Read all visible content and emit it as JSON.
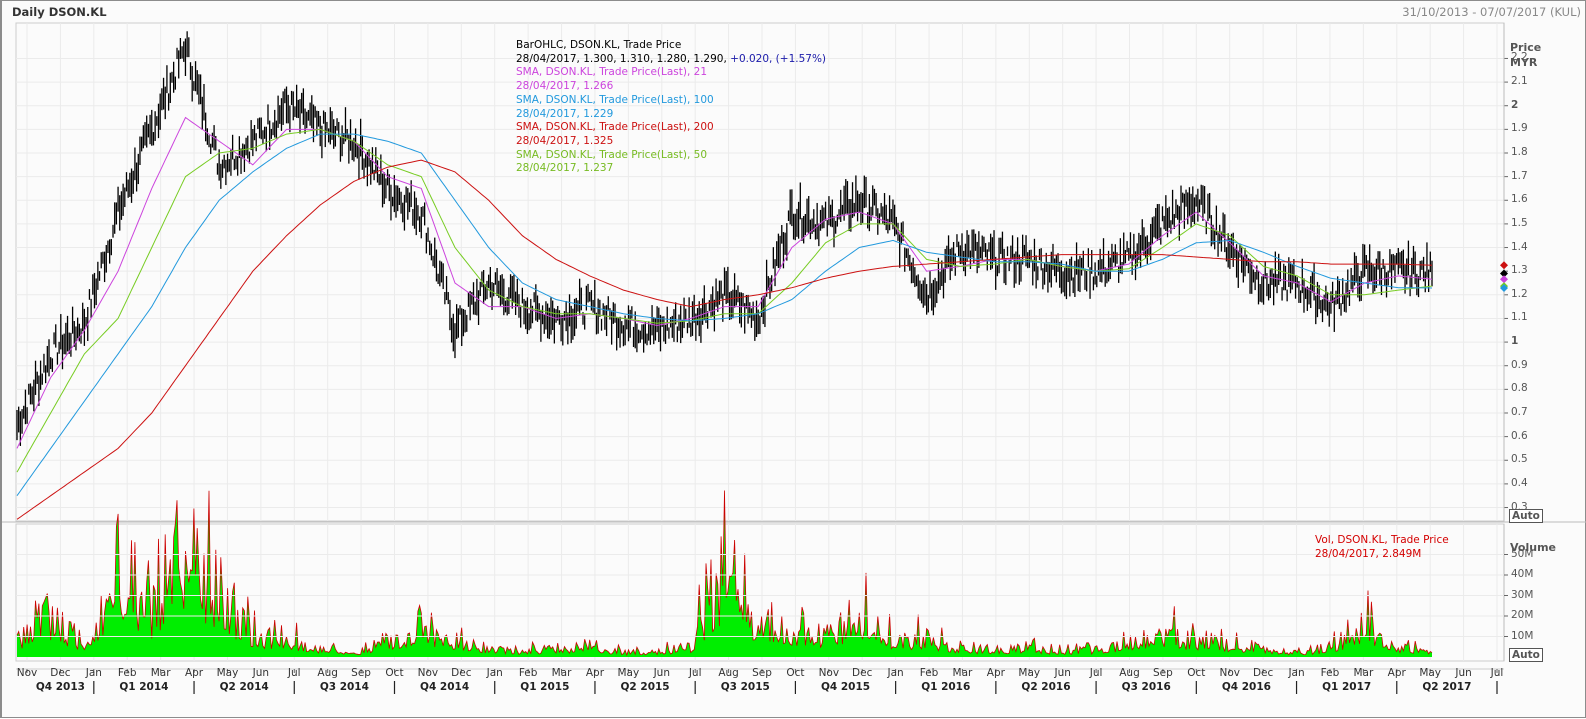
{
  "header": {
    "title": "Daily DSON.KL",
    "date_range": "31/10/2013 - 07/07/2017 (KUL)"
  },
  "legend": {
    "ohlc_title": "BarOHLC, DSON.KL, Trade Price",
    "ohlc_values": "28/04/2017, 1.300, 1.310, 1.280, 1.290,",
    "ohlc_change": "+0.020, (+1.57%)",
    "sma21_title": "SMA, DSON.KL, Trade Price(Last),  21",
    "sma21_value": "28/04/2017, 1.266",
    "sma100_title": "SMA, DSON.KL, Trade Price(Last),  100",
    "sma100_value": "28/04/2017, 1.229",
    "sma200_title": "SMA, DSON.KL, Trade Price(Last),  200",
    "sma200_value": "28/04/2017, 1.325",
    "sma50_title": "SMA, DSON.KL, Trade Price(Last),  50",
    "sma50_value": "28/04/2017, 1.237"
  },
  "volume_legend": {
    "title": "Vol, DSON.KL, Trade Price",
    "value": "28/04/2017, 2.849M"
  },
  "price_axis": {
    "title_line1": "Price",
    "title_line2": "MYR",
    "auto_label": "Auto",
    "ticks": [
      "2.2",
      "2.1",
      "2",
      "1.9",
      "1.8",
      "1.7",
      "1.6",
      "1.5",
      "1.4",
      "1.3",
      "1.2",
      "1.1",
      "1",
      "0.9",
      "0.8",
      "0.7",
      "0.6",
      "0.5",
      "0.4",
      "0.3"
    ]
  },
  "volume_axis": {
    "title": "Volume",
    "auto_label": "Auto",
    "ticks": [
      "50M",
      "40M",
      "30M",
      "20M",
      "10M"
    ]
  },
  "time_axis": {
    "months": [
      "Nov",
      "Dec",
      "Jan",
      "Feb",
      "Mar",
      "Apr",
      "May",
      "Jun",
      "Jul",
      "Aug",
      "Sep",
      "Oct",
      "Nov",
      "Dec",
      "Jan",
      "Feb",
      "Mar",
      "Apr",
      "May",
      "Jun",
      "Jul",
      "Aug",
      "Sep",
      "Oct",
      "Nov",
      "Dec",
      "Jan",
      "Feb",
      "Mar",
      "Apr",
      "May",
      "Jun",
      "Jul",
      "Aug",
      "Sep",
      "Oct",
      "Nov",
      "Dec",
      "Jan",
      "Feb",
      "Mar",
      "Apr",
      "May",
      "Jun",
      "Jul"
    ],
    "quarters": [
      "Q4 2013",
      "Q1 2014",
      "Q2 2014",
      "Q3 2014",
      "Q4 2014",
      "Q1 2015",
      "Q2 2015",
      "Q3 2015",
      "Q4 2015",
      "Q1 2016",
      "Q2 2016",
      "Q3 2016",
      "Q4 2016",
      "Q1 2017",
      "Q2 2017"
    ]
  },
  "colors": {
    "ohlc": "#000000",
    "sma21": "#cc44dd",
    "sma50": "#77cc22",
    "sma100": "#2299dd",
    "sma200": "#cc1111",
    "change": "#1a1aaa",
    "volume_fill": "#00ee00",
    "volume_line": "#cc0000"
  },
  "chart_data": [
    {
      "type": "line",
      "title": "Daily DSON.KL",
      "ylabel": "Price MYR",
      "ylim": [
        0.25,
        2.35
      ],
      "grid": true,
      "legend_position": "top-center",
      "x": [
        "Nov 2013",
        "Dec 2013",
        "Jan 2014",
        "Feb 2014",
        "Mar 2014",
        "Apr 2014",
        "May 2014",
        "Jun 2014",
        "Jul 2014",
        "Aug 2014",
        "Sep 2014",
        "Oct 2014",
        "Nov 2014",
        "Dec 2014",
        "Jan 2015",
        "Feb 2015",
        "Mar 2015",
        "Apr 2015",
        "May 2015",
        "Jun 2015",
        "Jul 2015",
        "Aug 2015",
        "Sep 2015",
        "Oct 2015",
        "Nov 2015",
        "Dec 2015",
        "Jan 2016",
        "Feb 2016",
        "Mar 2016",
        "Apr 2016",
        "May 2016",
        "Jun 2016",
        "Jul 2016",
        "Aug 2016",
        "Sep 2016",
        "Oct 2016",
        "Nov 2016",
        "Dec 2016",
        "Jan 2017",
        "Feb 2017",
        "Mar 2017",
        "Apr 2017",
        "May 2017"
      ],
      "series": [
        {
          "name": "BarOHLC Close",
          "values": [
            0.65,
            0.95,
            1.08,
            1.55,
            1.9,
            2.25,
            1.75,
            1.85,
            2.0,
            1.9,
            1.85,
            1.65,
            1.55,
            1.05,
            1.25,
            1.15,
            1.1,
            1.15,
            1.08,
            1.05,
            1.1,
            1.2,
            1.1,
            1.55,
            1.5,
            1.6,
            1.5,
            1.2,
            1.4,
            1.35,
            1.35,
            1.3,
            1.3,
            1.35,
            1.5,
            1.6,
            1.4,
            1.25,
            1.25,
            1.15,
            1.3,
            1.3,
            1.29
          ]
        },
        {
          "name": "SMA 21",
          "values": [
            0.55,
            0.85,
            1.05,
            1.3,
            1.65,
            1.95,
            1.85,
            1.75,
            1.9,
            1.9,
            1.85,
            1.7,
            1.65,
            1.25,
            1.15,
            1.15,
            1.1,
            1.12,
            1.1,
            1.07,
            1.1,
            1.15,
            1.15,
            1.4,
            1.52,
            1.55,
            1.5,
            1.3,
            1.32,
            1.35,
            1.35,
            1.32,
            1.3,
            1.33,
            1.45,
            1.55,
            1.42,
            1.28,
            1.25,
            1.17,
            1.25,
            1.28,
            1.266
          ]
        },
        {
          "name": "SMA 50",
          "values": [
            0.45,
            0.7,
            0.95,
            1.1,
            1.4,
            1.7,
            1.8,
            1.82,
            1.88,
            1.9,
            1.85,
            1.75,
            1.7,
            1.4,
            1.22,
            1.15,
            1.12,
            1.12,
            1.1,
            1.08,
            1.09,
            1.12,
            1.12,
            1.25,
            1.42,
            1.5,
            1.5,
            1.35,
            1.32,
            1.33,
            1.35,
            1.32,
            1.3,
            1.31,
            1.4,
            1.5,
            1.45,
            1.32,
            1.28,
            1.2,
            1.2,
            1.22,
            1.237
          ]
        },
        {
          "name": "SMA 100",
          "values": [
            0.35,
            0.55,
            0.75,
            0.95,
            1.15,
            1.4,
            1.6,
            1.72,
            1.82,
            1.88,
            1.88,
            1.85,
            1.8,
            1.6,
            1.4,
            1.25,
            1.18,
            1.15,
            1.12,
            1.1,
            1.09,
            1.1,
            1.12,
            1.18,
            1.3,
            1.4,
            1.43,
            1.38,
            1.36,
            1.34,
            1.34,
            1.33,
            1.3,
            1.3,
            1.35,
            1.42,
            1.43,
            1.38,
            1.32,
            1.27,
            1.25,
            1.23,
            1.229
          ]
        },
        {
          "name": "SMA 200",
          "values": [
            0.25,
            0.35,
            0.45,
            0.55,
            0.7,
            0.9,
            1.1,
            1.3,
            1.45,
            1.58,
            1.68,
            1.74,
            1.77,
            1.72,
            1.6,
            1.45,
            1.35,
            1.28,
            1.22,
            1.18,
            1.15,
            1.18,
            1.2,
            1.23,
            1.27,
            1.3,
            1.32,
            1.33,
            1.34,
            1.35,
            1.36,
            1.37,
            1.37,
            1.37,
            1.37,
            1.36,
            1.35,
            1.34,
            1.34,
            1.33,
            1.33,
            1.33,
            1.325
          ]
        }
      ]
    },
    {
      "type": "area",
      "title": "Vol, DSON.KL, Trade Price",
      "ylabel": "Volume",
      "ylim": [
        0,
        60000000
      ],
      "x": [
        "Nov 2013",
        "Dec 2013",
        "Jan 2014",
        "Feb 2014",
        "Mar 2014",
        "Apr 2014",
        "May 2014",
        "Jun 2014",
        "Jul 2014",
        "Aug 2014",
        "Sep 2014",
        "Oct 2014",
        "Nov 2014",
        "Dec 2014",
        "Jan 2015",
        "Feb 2015",
        "Mar 2015",
        "Apr 2015",
        "May 2015",
        "Jun 2015",
        "Jul 2015",
        "Aug 2015",
        "Sep 2015",
        "Oct 2015",
        "Nov 2015",
        "Dec 2015",
        "Jan 2016",
        "Feb 2016",
        "Mar 2016",
        "Apr 2016",
        "May 2016",
        "Jun 2016",
        "Jul 2016",
        "Aug 2016",
        "Sep 2016",
        "Oct 2016",
        "Nov 2016",
        "Dec 2016",
        "Jan 2017",
        "Feb 2017",
        "Mar 2017",
        "Apr 2017",
        "May 2017"
      ],
      "values": [
        12000000,
        25000000,
        8000000,
        52000000,
        30000000,
        60000000,
        42000000,
        15000000,
        12000000,
        5000000,
        3000000,
        10000000,
        20000000,
        10000000,
        6000000,
        4000000,
        5000000,
        8000000,
        3000000,
        4000000,
        6000000,
        58000000,
        20000000,
        18000000,
        14000000,
        26000000,
        12000000,
        12000000,
        6000000,
        5000000,
        6000000,
        4000000,
        5000000,
        10000000,
        15000000,
        10000000,
        8000000,
        5000000,
        3000000,
        6000000,
        22000000,
        7000000,
        2849000
      ]
    }
  ]
}
